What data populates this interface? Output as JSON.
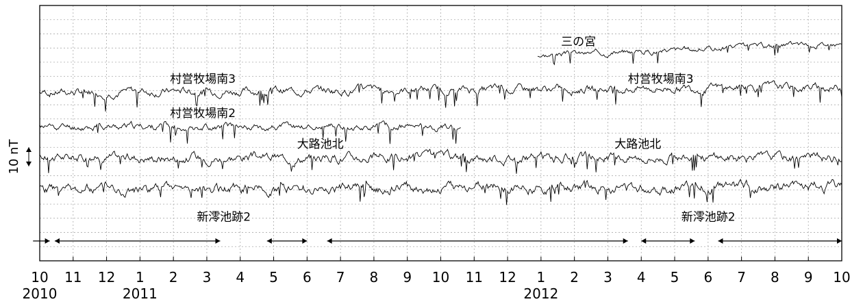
{
  "chart_data": {
    "type": "line",
    "y_scale_label": "10 nT",
    "x_ticks": [
      {
        "label": "10"
      },
      {
        "label": "11"
      },
      {
        "label": "12"
      },
      {
        "label": "1"
      },
      {
        "label": "2"
      },
      {
        "label": "3"
      },
      {
        "label": "4"
      },
      {
        "label": "5"
      },
      {
        "label": "6"
      },
      {
        "label": "7"
      },
      {
        "label": "8"
      },
      {
        "label": "9"
      },
      {
        "label": "10"
      },
      {
        "label": "11"
      },
      {
        "label": "12"
      },
      {
        "label": "1"
      },
      {
        "label": "2"
      },
      {
        "label": "3"
      },
      {
        "label": "4"
      },
      {
        "label": "5"
      },
      {
        "label": "6"
      },
      {
        "label": "7"
      },
      {
        "label": "8"
      },
      {
        "label": "9"
      },
      {
        "label": "10"
      }
    ],
    "year_labels": [
      {
        "label": "2010",
        "month_index": 0
      },
      {
        "label": "2011",
        "month_index": 3
      },
      {
        "label": "2012",
        "month_index": 15
      }
    ],
    "x_range_months": [
      0,
      24
    ],
    "grid": true,
    "series": [
      {
        "name": "三の宮",
        "start": 14.9,
        "end": 24.0,
        "level": 80.5,
        "trend": 12,
        "noise": 1.4,
        "seed": 3
      },
      {
        "name": "村営牧場南3",
        "start": 0.0,
        "end": 24.0,
        "level": 66,
        "trend": 2,
        "noise": 2.0,
        "seed": 7
      },
      {
        "name": "村営牧場南2",
        "start": 0.0,
        "end": 12.6,
        "level": 52.5,
        "trend": 0,
        "noise": 1.8,
        "seed": 11
      },
      {
        "name": "大路池北",
        "start": 0.0,
        "end": 24.0,
        "level": 40.5,
        "trend": 0,
        "noise": 2.3,
        "seed": 17
      },
      {
        "name": "新澪池跡2",
        "start": 0.0,
        "end": 24.0,
        "level": 28,
        "trend": 1,
        "noise": 2.6,
        "seed": 23
      }
    ],
    "series_labels": [
      {
        "text": "三の宮",
        "series": 0,
        "month": 15.6
      },
      {
        "text": "村営牧場南3",
        "series": 1,
        "month": 3.9
      },
      {
        "text": "村営牧場南3",
        "series": 1,
        "month": 17.6
      },
      {
        "text": "村営牧場南2",
        "series": 2,
        "month": 3.9
      },
      {
        "text": "大路池北",
        "series": 3,
        "month": 7.7
      },
      {
        "text": "大路池北",
        "series": 3,
        "month": 17.2
      },
      {
        "text": "新澪池跡2",
        "series": 4,
        "month": 4.7
      },
      {
        "text": "新澪池跡2",
        "series": 4,
        "month": 19.2
      }
    ],
    "periods": [
      {
        "start": -0.2,
        "end": 0.3
      },
      {
        "start": 0.45,
        "end": 5.4
      },
      {
        "start": 6.8,
        "end": 8.0
      },
      {
        "start": 8.6,
        "end": 17.6
      },
      {
        "start": 18.0,
        "end": 19.6
      },
      {
        "start": 20.3,
        "end": 24.0
      }
    ]
  }
}
